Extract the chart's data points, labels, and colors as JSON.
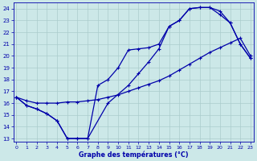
{
  "xlabel": "Graphe des températures (°C)",
  "bg_color": "#cce8e8",
  "line_color": "#0000aa",
  "grid_color": "#aacccc",
  "ylim": [
    12.7,
    24.5
  ],
  "xlim": [
    -0.3,
    23.3
  ],
  "yticks": [
    13,
    14,
    15,
    16,
    17,
    18,
    19,
    20,
    21,
    22,
    23,
    24
  ],
  "xticks": [
    0,
    1,
    2,
    3,
    4,
    5,
    6,
    7,
    8,
    9,
    10,
    11,
    12,
    13,
    14,
    15,
    16,
    17,
    18,
    19,
    20,
    21,
    22,
    23
  ],
  "line1_x": [
    0,
    1,
    2,
    3,
    4,
    5,
    6,
    7,
    9,
    11,
    12,
    13,
    14,
    15,
    16,
    17,
    18,
    19,
    20,
    21,
    22,
    23
  ],
  "line1_y": [
    16.5,
    15.8,
    15.5,
    15.1,
    14.5,
    13.0,
    13.0,
    13.0,
    16.0,
    17.5,
    18.5,
    19.5,
    20.6,
    22.5,
    23.0,
    24.0,
    24.1,
    24.1,
    23.5,
    22.8,
    21.0,
    19.8
  ],
  "line2_x": [
    0,
    1,
    2,
    3,
    4,
    5,
    6,
    7,
    8,
    9,
    10,
    11,
    12,
    13,
    14,
    15,
    16,
    17,
    18,
    19,
    20,
    21,
    22,
    23
  ],
  "line2_y": [
    16.5,
    16.2,
    16.0,
    16.0,
    16.0,
    16.1,
    16.1,
    16.2,
    16.3,
    16.5,
    16.7,
    17.0,
    17.3,
    17.6,
    17.9,
    18.3,
    18.8,
    19.3,
    19.8,
    20.3,
    20.7,
    21.1,
    21.5,
    20.0
  ],
  "line3_x": [
    0,
    1,
    2,
    3,
    4,
    5,
    6,
    7,
    8,
    9,
    10,
    11,
    12,
    13,
    14,
    15,
    16,
    17,
    18,
    19,
    20,
    21,
    22,
    23
  ],
  "line3_y": [
    16.5,
    15.8,
    15.5,
    15.1,
    14.5,
    13.0,
    13.0,
    13.0,
    17.5,
    18.0,
    19.0,
    20.5,
    20.6,
    20.7,
    21.0,
    22.5,
    23.0,
    24.0,
    24.1,
    24.1,
    23.8,
    22.8,
    21.0,
    19.8
  ]
}
